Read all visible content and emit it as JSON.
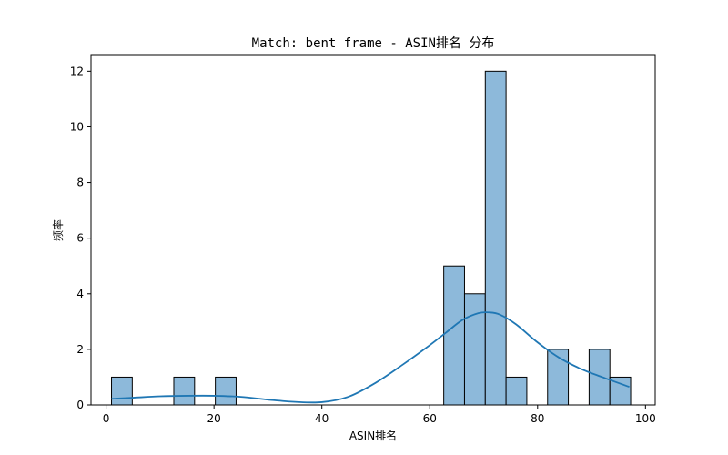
{
  "chart_data": {
    "type": "bar",
    "title": "Match: bent frame - ASIN排名 分布",
    "xlabel": "ASIN排名",
    "ylabel": "频率",
    "xlim": [
      -2.8,
      101.8
    ],
    "ylim": [
      0,
      12.6
    ],
    "xticks": [
      0,
      20,
      40,
      60,
      80,
      100
    ],
    "yticks": [
      0,
      2,
      4,
      6,
      8,
      10,
      12
    ],
    "bin_edges": [
      1,
      4.85,
      8.7,
      12.55,
      16.4,
      20.25,
      24.1,
      27.95,
      31.8,
      35.65,
      39.5,
      43.35,
      47.2,
      51.05,
      54.9,
      58.75,
      62.6,
      66.45,
      70.3,
      74.15,
      78.0,
      81.85,
      85.7,
      89.55,
      93.4,
      97.25
    ],
    "counts": [
      1,
      0,
      0,
      1,
      0,
      1,
      0,
      0,
      0,
      0,
      0,
      0,
      0,
      0,
      0,
      0,
      5,
      4,
      12,
      1,
      0,
      2,
      0,
      2,
      1
    ],
    "kde": {
      "x": [
        1,
        5,
        10,
        15,
        20,
        25,
        30,
        35,
        40,
        45,
        50,
        55,
        60,
        63,
        66,
        69,
        71,
        73,
        76,
        80,
        84,
        88,
        92,
        97
      ],
      "y": [
        0.22,
        0.26,
        0.31,
        0.33,
        0.33,
        0.29,
        0.19,
        0.11,
        0.1,
        0.3,
        0.8,
        1.45,
        2.15,
        2.6,
        3.05,
        3.3,
        3.33,
        3.25,
        2.9,
        2.25,
        1.7,
        1.3,
        1.0,
        0.65
      ]
    },
    "bar_fill": "#8db9da",
    "bar_stroke": "#000000",
    "line_color": "#1f77b4",
    "grid": false,
    "legend": "none"
  }
}
